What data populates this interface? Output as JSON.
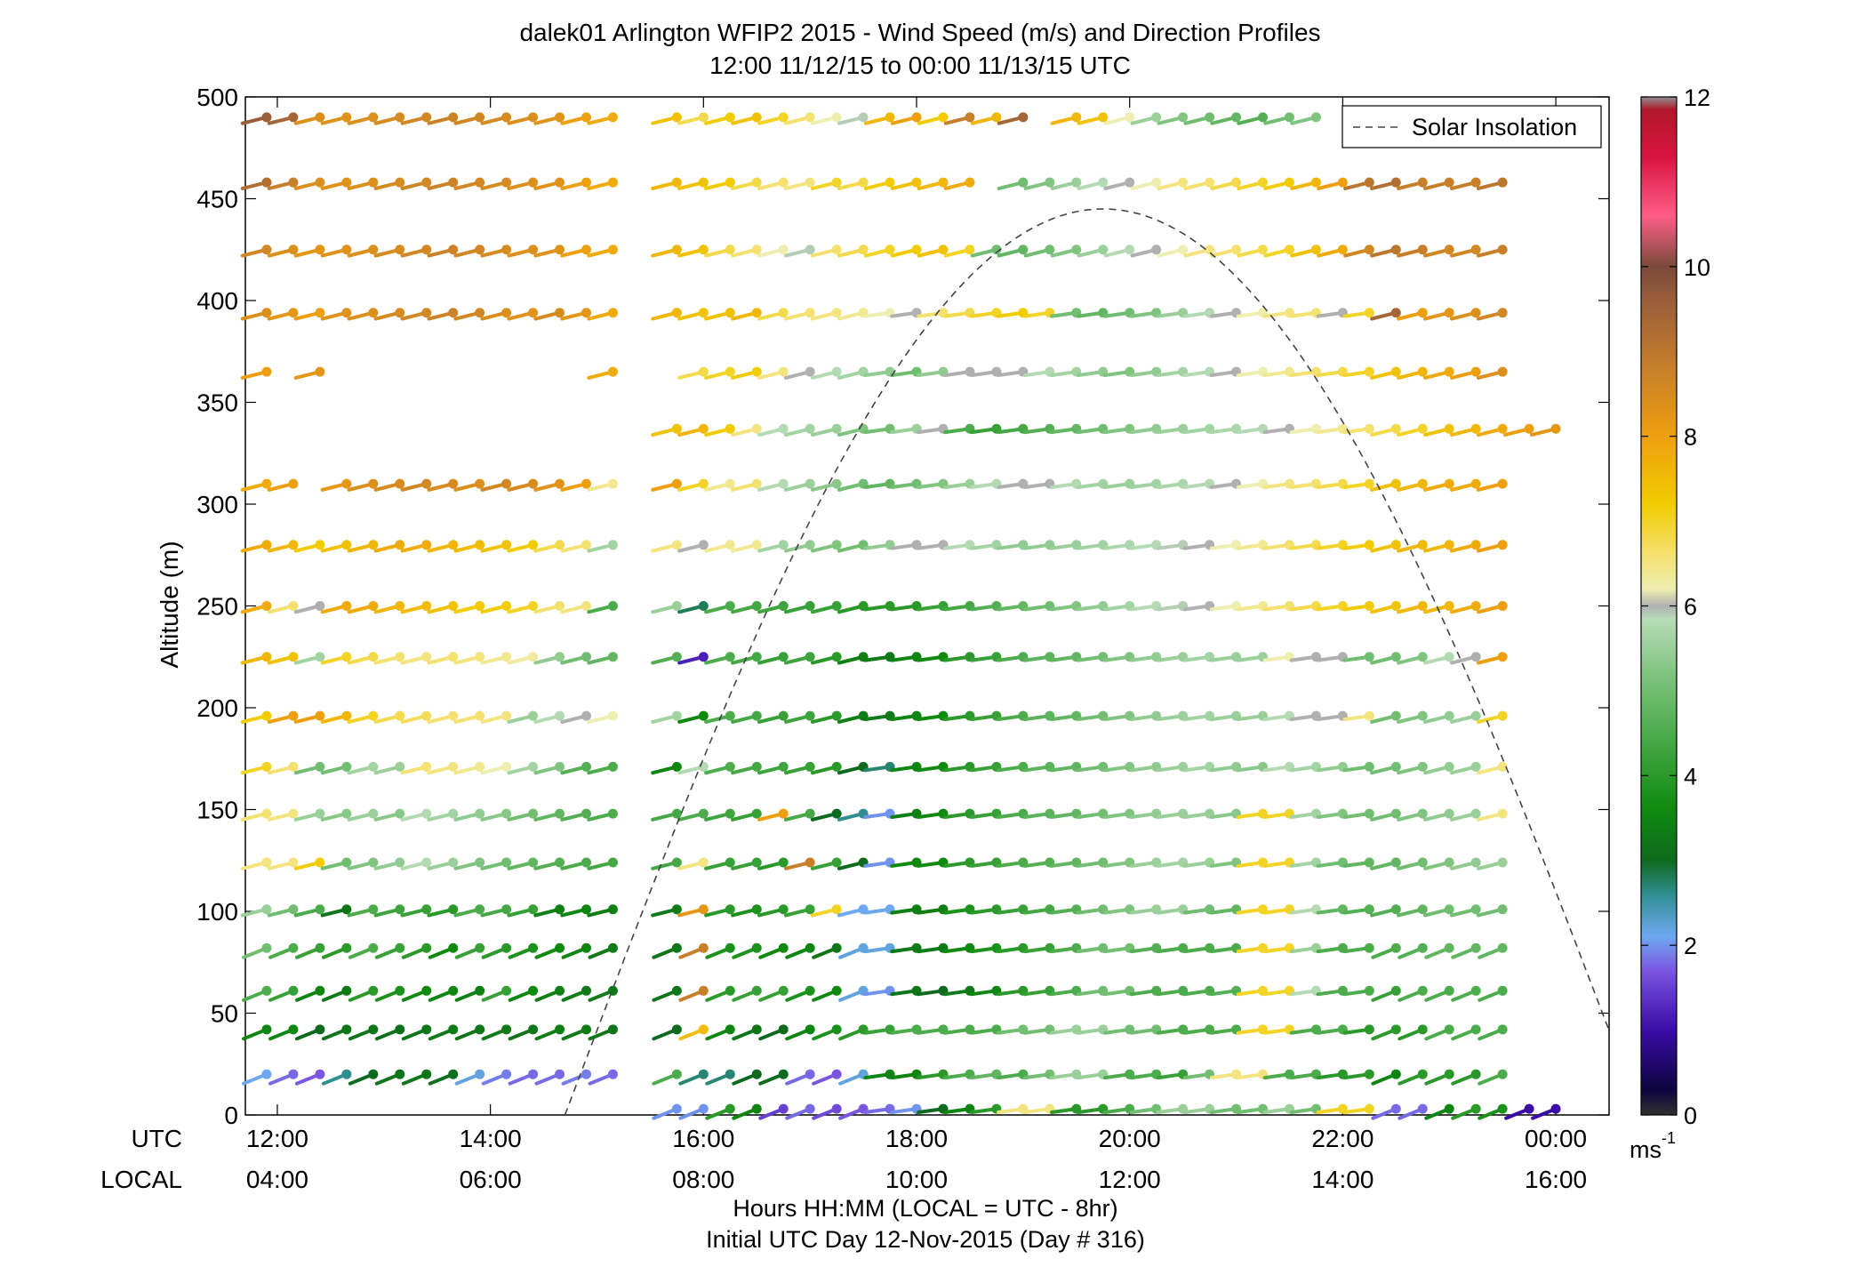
{
  "chart_data": {
    "type": "wind-barb time-height profile",
    "title_line1": "dalek01 Arlington WFIP2 2015 - Wind Speed (m/s) and Direction Profiles",
    "title_line2": "12:00 11/12/15 to 00:00 11/13/15  UTC",
    "ylabel": "Altitude (m)",
    "ylim": [
      0,
      500
    ],
    "yticks": [
      "0",
      "50",
      "100",
      "150",
      "200",
      "250",
      "300",
      "350",
      "400",
      "450",
      "500"
    ],
    "ytick_values": [
      0,
      50,
      100,
      150,
      200,
      250,
      300,
      350,
      400,
      450,
      500
    ],
    "xlim_hours": [
      11.7,
      24.5
    ],
    "xtick_hours": [
      12,
      14,
      16,
      18,
      20,
      22,
      24
    ],
    "x_utc_row_label": "UTC",
    "x_local_row_label": "LOCAL",
    "x_utc_ticks": [
      "12:00",
      "14:00",
      "16:00",
      "18:00",
      "20:00",
      "22:00",
      "00:00"
    ],
    "x_local_ticks": [
      "04:00",
      "06:00",
      "08:00",
      "10:00",
      "12:00",
      "14:00",
      "16:00"
    ],
    "xlabel_line1": "Hours HH:MM  (LOCAL = UTC - 8hr)",
    "xlabel_line2": "Initial UTC Day 12-Nov-2015 (Day # 316)",
    "legend": {
      "label": "Solar Insolation",
      "location": "top-right",
      "style": "dashed"
    },
    "colorbar": {
      "range": [
        0,
        12
      ],
      "ticks": [
        "0",
        "2",
        "4",
        "6",
        "8",
        "10",
        "12"
      ],
      "tick_values": [
        0,
        2,
        4,
        6,
        8,
        10,
        12
      ],
      "unit": "ms",
      "unit_exponent": "-1",
      "stops": [
        {
          "v": 0.0,
          "c": "#303030"
        },
        {
          "v": 0.3,
          "c": "#0d0540"
        },
        {
          "v": 1.0,
          "c": "#3a0ca8"
        },
        {
          "v": 1.7,
          "c": "#7a55e0"
        },
        {
          "v": 2.1,
          "c": "#6ea8f0"
        },
        {
          "v": 2.6,
          "c": "#2f8f90"
        },
        {
          "v": 3.0,
          "c": "#0e6a1e"
        },
        {
          "v": 3.6,
          "c": "#0f8a0f"
        },
        {
          "v": 4.4,
          "c": "#45a845"
        },
        {
          "v": 5.2,
          "c": "#80c480"
        },
        {
          "v": 5.85,
          "c": "#b8dcb8"
        },
        {
          "v": 6.0,
          "c": "#b0b0b0"
        },
        {
          "v": 6.2,
          "c": "#eeeeb0"
        },
        {
          "v": 6.6,
          "c": "#f4e170"
        },
        {
          "v": 7.2,
          "c": "#f2cc00"
        },
        {
          "v": 8.0,
          "c": "#ee9f10"
        },
        {
          "v": 8.8,
          "c": "#c77f2a"
        },
        {
          "v": 9.6,
          "c": "#9a5e3b"
        },
        {
          "v": 10.0,
          "c": "#7a4a3a"
        },
        {
          "v": 10.6,
          "c": "#ff5e88"
        },
        {
          "v": 11.3,
          "c": "#d8123e"
        },
        {
          "v": 11.85,
          "c": "#b0182a"
        },
        {
          "v": 12.0,
          "c": "#909090"
        }
      ]
    },
    "solar_insolation_curve": {
      "start_hour": 14.7,
      "end_hour": 24.5,
      "peak_hour": 19.75,
      "peak_altitude": 445
    },
    "barb_altitudes": [
      3,
      20,
      42,
      61,
      82,
      101,
      124,
      148,
      171,
      196,
      225,
      250,
      280,
      310,
      337,
      365,
      394,
      425,
      458,
      490
    ],
    "time_step_hours": 0.25,
    "speed_profile_rows": [
      {
        "alt": 3,
        "start": 15.75,
        "speeds": [
          2.0,
          2.0,
          4.0,
          3.5,
          1.5,
          1.8,
          1.6,
          1.7,
          1.8,
          2.0,
          3.0,
          3.5,
          4.0,
          6.5,
          6.5,
          4.0,
          4.0,
          4.5,
          5.0,
          5.5,
          5.5,
          5.0,
          5.0,
          5.5,
          5.0,
          7.0,
          7.0,
          1.8,
          1.8,
          3.5,
          4.0,
          3.8,
          1.0,
          1.0,
          1.5
        ]
      },
      {
        "alt": 20,
        "start": 11.9,
        "gap": [
          15.25,
          15.75
        ],
        "speeds": [
          2.1,
          1.8,
          1.7,
          2.6,
          3.0,
          3.2,
          3.2,
          3.1,
          2.2,
          1.9,
          1.8,
          1.8,
          1.9,
          1.8,
          4.5,
          2.7,
          2.7,
          3.0,
          3.0,
          1.8,
          1.7,
          2.2,
          3.5,
          3.5,
          4.0,
          4.5,
          4.8,
          4.5,
          5.0,
          5.5,
          5.5,
          4.5,
          4.5,
          4.2,
          5.0,
          6.5,
          6.5,
          4.5,
          4.5,
          4.0,
          4.0,
          3.5,
          4.0,
          4.0,
          4.0,
          4.5
        ]
      },
      {
        "alt": 42,
        "start": 11.9,
        "gap": [
          15.25,
          15.75
        ],
        "speeds": [
          3.5,
          3.5,
          3.0,
          3.2,
          3.2,
          3.1,
          3.2,
          3.3,
          3.2,
          3.3,
          3.2,
          3.4,
          3.3,
          3.2,
          3.0,
          7.5,
          3.5,
          3.2,
          3.0,
          3.5,
          3.8,
          4.0,
          4.2,
          4.5,
          4.5,
          4.5,
          4.5,
          5.0,
          5.0,
          5.5,
          5.5,
          5.0,
          5.0,
          4.5,
          4.5,
          4.5,
          7.0,
          7.0,
          4.5,
          4.5,
          4.0,
          4.0,
          4.0,
          4.5,
          4.5,
          4.5
        ]
      },
      {
        "alt": 61,
        "start": 11.9,
        "gap": [
          15.25,
          15.75
        ],
        "speeds": [
          4.5,
          4.2,
          3.5,
          3.3,
          4.0,
          3.8,
          3.6,
          3.5,
          3.4,
          4.2,
          3.6,
          3.4,
          3.3,
          3.3,
          3.2,
          8.8,
          4.0,
          4.2,
          4.2,
          3.8,
          3.6,
          2.2,
          2.0,
          3.2,
          3.0,
          3.3,
          3.5,
          4.0,
          4.2,
          4.5,
          5.0,
          5.0,
          4.5,
          4.5,
          4.5,
          4.6,
          7.0,
          7.0,
          5.8,
          4.5,
          4.5,
          4.2,
          4.5,
          4.5,
          4.5,
          4.5
        ]
      },
      {
        "alt": 82,
        "start": 11.9,
        "gap": [
          15.25,
          15.75
        ],
        "speeds": [
          5.0,
          4.5,
          4.2,
          4.0,
          4.5,
          4.2,
          4.0,
          3.6,
          4.2,
          4.0,
          3.8,
          3.6,
          3.5,
          3.3,
          3.2,
          8.8,
          3.8,
          3.8,
          3.6,
          3.5,
          3.2,
          2.2,
          2.2,
          3.3,
          3.3,
          3.6,
          3.8,
          4.0,
          4.2,
          4.5,
          5.0,
          5.0,
          4.6,
          4.5,
          4.5,
          4.5,
          7.0,
          7.0,
          5.5,
          4.5,
          4.5,
          4.5,
          4.6,
          4.8,
          4.8,
          4.8
        ]
      },
      {
        "alt": 101,
        "start": 11.9,
        "gap": [
          15.25,
          15.75
        ],
        "speeds": [
          5.5,
          5.0,
          4.5,
          3.2,
          4.5,
          4.3,
          4.2,
          4.0,
          4.5,
          4.4,
          4.2,
          3.4,
          3.5,
          3.4,
          3.3,
          8.2,
          4.0,
          3.8,
          4.0,
          4.2,
          7.0,
          2.1,
          2.1,
          3.4,
          3.4,
          3.8,
          4.0,
          4.2,
          4.4,
          4.6,
          5.0,
          5.2,
          5.5,
          5.5,
          5.0,
          4.8,
          7.0,
          7.0,
          5.8,
          4.8,
          4.6,
          4.6,
          4.8,
          5.0,
          5.0,
          5.0
        ]
      },
      {
        "alt": 124,
        "start": 11.9,
        "gap": [
          15.25,
          15.75
        ],
        "speeds": [
          6.5,
          6.5,
          7.2,
          5.0,
          5.2,
          5.4,
          5.8,
          5.5,
          5.2,
          5.0,
          4.8,
          4.6,
          4.5,
          4.4,
          4.4,
          6.5,
          4.2,
          4.2,
          4.0,
          8.8,
          4.2,
          3.0,
          2.0,
          3.6,
          3.6,
          4.0,
          4.2,
          4.5,
          4.6,
          4.8,
          5.0,
          5.2,
          5.5,
          5.6,
          5.5,
          5.2,
          7.0,
          7.0,
          5.6,
          5.0,
          4.8,
          4.8,
          5.0,
          5.2,
          5.4,
          5.5
        ]
      },
      {
        "alt": 148,
        "start": 11.9,
        "gap": [
          15.25,
          15.75
        ],
        "speeds": [
          6.6,
          6.5,
          5.5,
          5.3,
          5.5,
          5.3,
          5.8,
          5.6,
          5.4,
          5.3,
          5.0,
          4.8,
          4.6,
          4.5,
          4.4,
          4.5,
          4.3,
          4.2,
          8.0,
          4.4,
          3.0,
          2.6,
          2.0,
          3.4,
          3.6,
          4.0,
          4.2,
          4.5,
          4.7,
          4.8,
          5.0,
          5.2,
          5.4,
          5.5,
          5.5,
          5.3,
          7.0,
          7.0,
          5.6,
          5.2,
          5.0,
          5.0,
          5.2,
          5.4,
          5.5,
          6.5
        ]
      },
      {
        "alt": 171,
        "start": 11.9,
        "gap": [
          15.25,
          15.75
        ],
        "speeds": [
          7.0,
          6.6,
          5.0,
          5.0,
          5.6,
          5.5,
          6.6,
          6.5,
          6.4,
          6.2,
          5.6,
          5.2,
          4.6,
          4.5,
          3.5,
          5.8,
          4.5,
          4.4,
          4.3,
          4.2,
          4.0,
          3.0,
          2.7,
          3.5,
          3.6,
          4.0,
          4.2,
          4.5,
          4.7,
          4.8,
          5.0,
          5.2,
          5.4,
          5.5,
          5.6,
          5.4,
          5.3,
          5.8,
          5.6,
          5.4,
          5.0,
          5.0,
          5.2,
          5.4,
          5.5,
          6.5
        ]
      },
      {
        "alt": 196,
        "start": 11.9,
        "gap": [
          15.25,
          15.75
        ],
        "speeds": [
          7.2,
          8.0,
          8.0,
          7.6,
          7.0,
          6.8,
          6.7,
          6.6,
          6.6,
          6.5,
          5.5,
          5.8,
          6.0,
          6.2,
          5.6,
          3.6,
          4.5,
          4.4,
          4.2,
          4.3,
          4.0,
          3.4,
          3.3,
          3.5,
          3.6,
          4.0,
          4.2,
          4.5,
          4.7,
          4.8,
          5.0,
          5.2,
          5.4,
          5.5,
          5.6,
          5.5,
          5.5,
          5.8,
          6.0,
          6.0,
          6.5,
          5.0,
          5.2,
          5.4,
          5.5,
          7.0
        ]
      },
      {
        "alt": 225,
        "start": 11.9,
        "gap": [
          15.25,
          15.75
        ],
        "speeds": [
          7.6,
          7.4,
          5.6,
          7.0,
          6.8,
          6.6,
          6.5,
          6.6,
          6.5,
          6.4,
          6.3,
          5.4,
          5.0,
          4.8,
          4.6,
          1.2,
          4.5,
          4.4,
          4.2,
          4.3,
          4.0,
          3.4,
          3.3,
          3.5,
          3.6,
          4.0,
          4.2,
          4.5,
          4.7,
          4.8,
          5.0,
          5.2,
          5.4,
          5.5,
          5.6,
          5.5,
          5.5,
          6.2,
          6.0,
          6.0,
          5.0,
          5.0,
          5.2,
          5.8,
          6.0,
          8.0
        ]
      },
      {
        "alt": 250,
        "start": 11.9,
        "gap": [
          15.25,
          15.75
        ],
        "speeds": [
          7.8,
          6.6,
          6.0,
          7.8,
          7.8,
          7.6,
          7.5,
          7.4,
          7.2,
          7.2,
          7.0,
          6.6,
          6.5,
          4.5,
          5.5,
          2.8,
          4.5,
          4.4,
          4.3,
          4.2,
          4.2,
          4.0,
          4.0,
          4.0,
          4.2,
          4.4,
          4.6,
          4.8,
          5.0,
          5.2,
          5.4,
          5.6,
          5.8,
          5.9,
          6.0,
          6.2,
          6.4,
          6.6,
          6.8,
          7.0,
          7.2,
          7.4,
          7.6,
          7.6,
          7.8,
          8.0
        ]
      },
      {
        "alt": 280,
        "start": 11.9,
        "gap": [
          15.25,
          15.75
        ],
        "speeds": [
          7.8,
          7.6,
          7.2,
          7.4,
          7.6,
          7.8,
          7.8,
          7.6,
          7.5,
          7.4,
          7.2,
          6.8,
          6.6,
          5.6,
          6.5,
          6.0,
          6.4,
          6.4,
          5.6,
          5.4,
          5.2,
          5.0,
          5.4,
          6.0,
          6.0,
          5.8,
          5.6,
          5.4,
          5.4,
          5.5,
          5.6,
          5.7,
          5.8,
          5.9,
          6.0,
          6.2,
          6.4,
          6.6,
          6.8,
          7.0,
          7.2,
          7.4,
          7.6,
          7.6,
          7.8,
          8.0
        ]
      },
      {
        "alt": 310,
        "start": 11.9,
        "gap": [
          15.25,
          15.75
        ],
        "speeds": [
          7.8,
          8.0,
          0,
          8.2,
          8.4,
          8.5,
          8.6,
          8.5,
          8.4,
          8.6,
          8.5,
          8.3,
          8.0,
          6.4,
          8.0,
          7.0,
          6.4,
          6.6,
          5.8,
          5.5,
          5.3,
          5.0,
          4.8,
          5.0,
          5.2,
          5.5,
          5.8,
          6.0,
          6.0,
          5.8,
          5.6,
          5.5,
          5.6,
          5.7,
          5.8,
          6.0,
          6.2,
          6.5,
          6.6,
          6.8,
          7.0,
          7.4,
          7.6,
          7.8,
          7.8,
          8.0
        ]
      },
      {
        "alt": 337,
        "start": 15.75,
        "speeds": [
          7.4,
          7.6,
          7.2,
          6.5,
          5.8,
          5.6,
          5.5,
          5.2,
          5.0,
          5.5,
          6.0,
          4.5,
          4.2,
          4.4,
          4.6,
          4.8,
          5.0,
          5.2,
          5.4,
          5.5,
          5.6,
          5.7,
          5.8,
          6.0,
          6.2,
          6.4,
          6.6,
          6.8,
          7.0,
          7.4,
          7.6,
          7.8,
          8.0,
          8.2,
          8.4
        ]
      },
      {
        "alt": 365,
        "start": 11.9,
        "gap": [
          15.25,
          15.75
        ],
        "speeds": [
          8.0,
          0,
          8.2,
          0,
          0,
          0,
          0,
          0,
          0,
          0,
          0,
          0,
          0,
          7.8,
          0,
          6.8,
          7.0,
          7.2,
          6.5,
          6.0,
          5.8,
          5.6,
          5.4,
          5.0,
          5.4,
          6.0,
          6.0,
          6.0,
          5.8,
          5.6,
          5.4,
          5.2,
          5.4,
          5.6,
          5.8,
          6.0,
          6.2,
          6.4,
          6.6,
          6.8,
          7.0,
          7.4,
          7.6,
          7.8,
          8.0,
          8.4
        ]
      },
      {
        "alt": 394,
        "start": 11.9,
        "gap": [
          15.25,
          15.75
        ],
        "speeds": [
          8.4,
          8.2,
          8.0,
          8.3,
          8.4,
          8.5,
          8.6,
          8.7,
          8.6,
          8.4,
          8.3,
          8.5,
          8.2,
          7.8,
          7.6,
          7.4,
          7.4,
          7.6,
          6.8,
          6.6,
          6.5,
          6.4,
          6.2,
          6.0,
          6.6,
          6.8,
          7.0,
          7.2,
          7.0,
          5.0,
          4.8,
          5.0,
          5.2,
          5.5,
          5.8,
          6.0,
          6.2,
          6.5,
          6.6,
          6.0,
          7.0,
          9.4,
          8.0,
          8.2,
          8.4,
          8.6
        ]
      },
      {
        "alt": 425,
        "start": 11.9,
        "gap": [
          15.25,
          15.75
        ],
        "speeds": [
          8.6,
          8.4,
          8.2,
          8.3,
          8.4,
          8.5,
          8.6,
          8.7,
          8.6,
          8.5,
          8.4,
          8.3,
          8.0,
          7.8,
          7.6,
          7.4,
          6.8,
          6.6,
          6.2,
          5.9,
          6.6,
          6.8,
          7.0,
          7.2,
          7.4,
          7.0,
          5.0,
          4.8,
          5.0,
          5.2,
          5.5,
          5.8,
          6.0,
          6.2,
          6.5,
          6.6,
          6.8,
          7.0,
          7.4,
          7.8,
          8.6,
          9.0,
          8.8,
          8.6,
          8.6,
          8.8
        ]
      },
      {
        "alt": 458,
        "start": 11.9,
        "gap": [
          15.25,
          15.75
        ],
        "speeds": [
          9.2,
          8.8,
          8.4,
          8.3,
          8.4,
          8.5,
          8.6,
          8.7,
          8.6,
          8.5,
          8.4,
          8.3,
          8.0,
          7.8,
          7.6,
          7.4,
          7.2,
          6.8,
          6.6,
          6.5,
          7.0,
          6.8,
          7.2,
          7.4,
          7.6,
          7.8,
          0,
          5.0,
          5.2,
          5.5,
          5.8,
          6.0,
          6.2,
          6.5,
          6.6,
          6.8,
          7.0,
          7.2,
          7.6,
          8.0,
          9.0,
          9.2,
          8.8,
          8.8,
          8.8,
          9.0
        ]
      },
      {
        "alt": 490,
        "start": 11.9,
        "gap": [
          15.25,
          15.75
        ],
        "speeds": [
          9.6,
          9.4,
          8.4,
          8.3,
          8.4,
          8.5,
          8.6,
          8.7,
          8.6,
          8.5,
          8.4,
          8.3,
          8.0,
          7.8,
          7.4,
          6.8,
          7.2,
          7.4,
          7.0,
          6.6,
          6.2,
          5.9,
          7.6,
          8.0,
          7.2,
          8.8,
          7.6,
          9.4,
          0,
          7.6,
          7.4,
          6.2,
          5.5,
          5.2,
          5.0,
          4.8,
          4.6,
          5.0,
          5.2
        ]
      }
    ],
    "direction_profile_deg": {
      "low_levels_tilt": 22,
      "upper_levels_tilt": 14,
      "daytime_tilt": 8
    }
  }
}
